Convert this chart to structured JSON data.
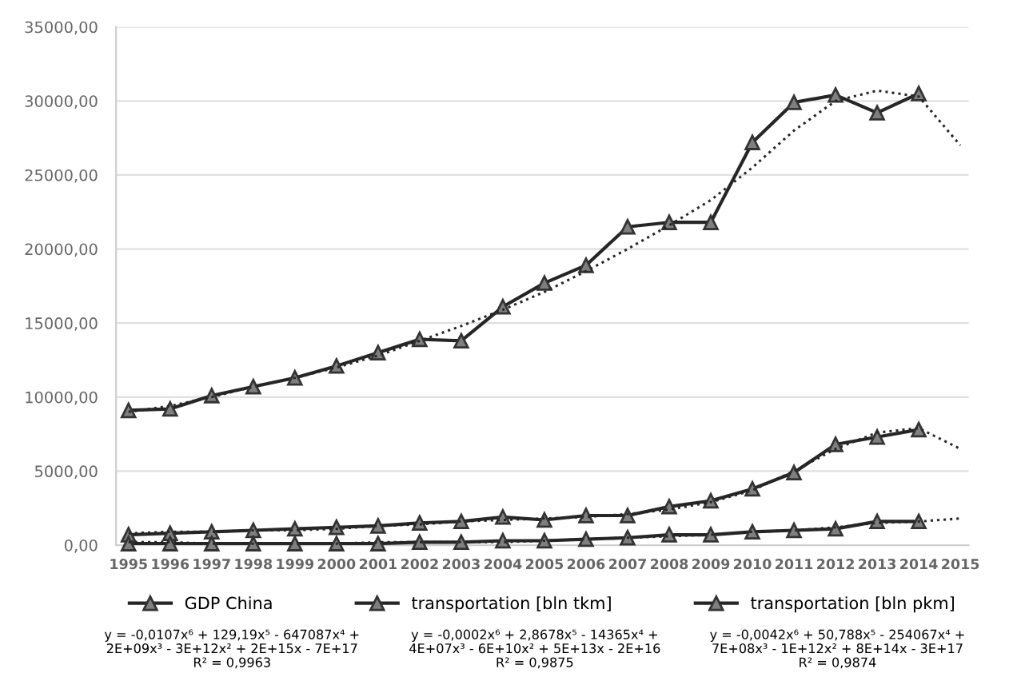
{
  "chart_data": {
    "type": "line",
    "categories": [
      "1995",
      "1996",
      "1997",
      "1998",
      "1999",
      "2000",
      "2001",
      "2002",
      "2003",
      "2004",
      "2005",
      "2006",
      "2007",
      "2008",
      "2009",
      "2010",
      "2011",
      "2012",
      "2013",
      "2014",
      "2015"
    ],
    "ylim": [
      0,
      35000
    ],
    "yticks": [
      {
        "value": 0,
        "label": "0,00"
      },
      {
        "value": 5000,
        "label": "5000,00"
      },
      {
        "value": 10000,
        "label": "10000,00"
      },
      {
        "value": 15000,
        "label": "15000,00"
      },
      {
        "value": 20000,
        "label": "20000,00"
      },
      {
        "value": 25000,
        "label": "25000,00"
      },
      {
        "value": 30000,
        "label": "30000,00"
      },
      {
        "value": 35000,
        "label": "35000,00"
      }
    ],
    "grid": "y",
    "legend": "bottom",
    "marker": "triangle",
    "line_style": "solid",
    "series": [
      {
        "name": "GDP China",
        "color": "#262626",
        "values": [
          9100,
          9200,
          10100,
          10700,
          11300,
          12100,
          13000,
          13900,
          13800,
          16100,
          17700,
          18900,
          21500,
          21800,
          21800,
          27200,
          29900,
          30400,
          29200,
          30500,
          null
        ]
      },
      {
        "name": "transportation [bln tkm]",
        "color": "#262626",
        "values": [
          700,
          800,
          900,
          1000,
          1100,
          1200,
          1300,
          1500,
          1600,
          1900,
          1700,
          2000,
          2000,
          2600,
          3000,
          3800,
          4900,
          6800,
          7300,
          7800,
          null
        ]
      },
      {
        "name": "transportation [bln pkm]",
        "color": "#262626",
        "values": [
          100,
          100,
          100,
          100,
          100,
          100,
          100,
          200,
          200,
          300,
          300,
          400,
          500,
          700,
          700,
          900,
          1000,
          1100,
          1600,
          1600,
          null
        ]
      },
      {
        "color": "#262626",
        "marker": "none",
        "line_style": "dotted",
        "values": [
          9000,
          9400,
          10000,
          10700,
          11300,
          12000,
          12800,
          13800,
          14800,
          15900,
          17100,
          18500,
          20000,
          21600,
          23300,
          25500,
          28000,
          30000,
          30700,
          30300,
          27000
        ]
      },
      {
        "color": "#262626",
        "marker": "none",
        "line_style": "dotted",
        "values": [
          800,
          900,
          900,
          1000,
          1000,
          1100,
          1300,
          1400,
          1600,
          1700,
          1800,
          1900,
          2100,
          2400,
          2900,
          3700,
          5000,
          6500,
          7600,
          7900,
          6500
        ]
      },
      {
        "color": "#262626",
        "marker": "none",
        "line_style": "dotted",
        "values": [
          200,
          200,
          100,
          100,
          100,
          100,
          200,
          200,
          200,
          200,
          300,
          400,
          500,
          600,
          700,
          900,
          1000,
          1200,
          1500,
          1600,
          1800
        ]
      }
    ],
    "annotations": [
      "y = -0,0107x⁶ + 129,19x⁵ - 647087x⁴ +\n2E+09x³ - 3E+12x² + 2E+15x - 7E+17\nR² = 0,9963",
      "y = -0,0002x⁶ + 2,8678x⁵ - 14365x⁴ +\n4E+07x³ - 6E+10x² + 5E+13x - 2E+16\nR² = 0,9875",
      "y = -0,0042x⁶ + 50,788x⁵ - 254067x⁴ +\n7E+08x³ - 1E+12x² + 8E+14x - 3E+17\nR² = 0,9874"
    ]
  }
}
